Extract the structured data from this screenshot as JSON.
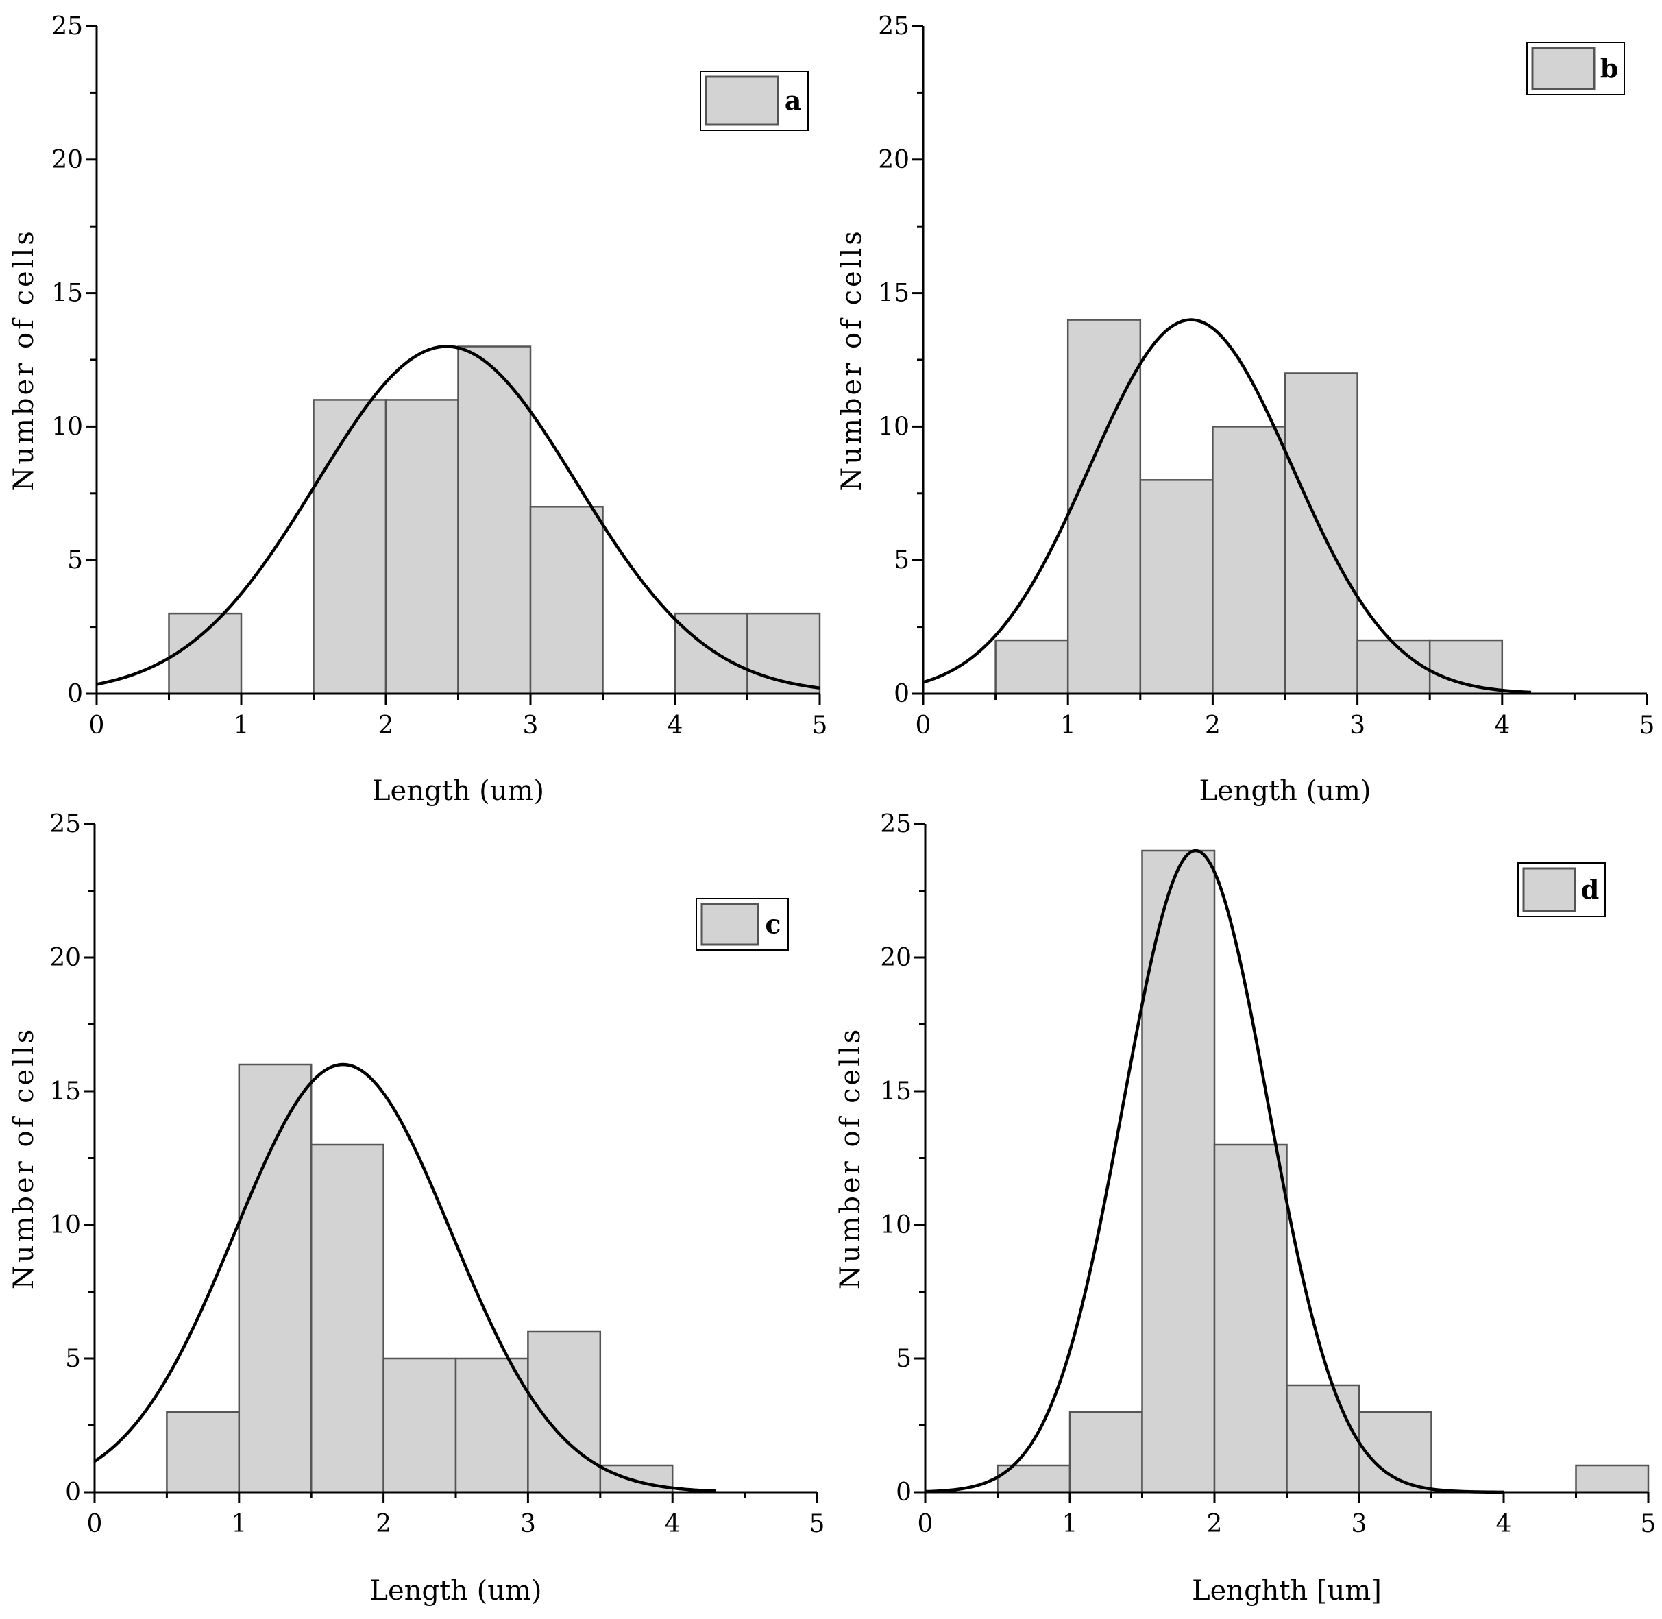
{
  "colors": {
    "bar_fill": "#d3d3d3",
    "bar_stroke": "#555555",
    "curve": "#000000",
    "axis": "#000000"
  },
  "chart_data": [
    {
      "type": "bar",
      "legend": "a",
      "legend_position": "top-right",
      "xlabel": "Length (um)",
      "ylabel": "Number of cells",
      "xlim": [
        0,
        5
      ],
      "ylim": [
        0,
        25
      ],
      "xticks": [
        "0",
        "1",
        "2",
        "3",
        "4",
        "5"
      ],
      "yticks": [
        "0",
        "5",
        "10",
        "15",
        "20",
        "25"
      ],
      "bins": [
        [
          0.5,
          1.0
        ],
        [
          1.5,
          2.0
        ],
        [
          2.0,
          2.5
        ],
        [
          2.5,
          3.0
        ],
        [
          3.0,
          3.5
        ],
        [
          4.0,
          4.5
        ],
        [
          4.5,
          5.0
        ]
      ],
      "values": [
        3,
        11,
        11,
        13,
        7,
        3,
        3
      ],
      "fit": {
        "type": "normal",
        "mean": 2.42,
        "sigma": 0.9,
        "peak": 13,
        "x_range": [
          0,
          5
        ]
      }
    },
    {
      "type": "bar",
      "legend": "b",
      "legend_position": "top-right",
      "xlabel": "Length (um)",
      "ylabel": "Number of cells",
      "xlim": [
        0,
        5
      ],
      "ylim": [
        0,
        25
      ],
      "xticks": [
        "0",
        "1",
        "2",
        "3",
        "4",
        "5"
      ],
      "yticks": [
        "0",
        "5",
        "10",
        "15",
        "20",
        "25"
      ],
      "bins": [
        [
          0.5,
          1.0
        ],
        [
          1.0,
          1.5
        ],
        [
          1.5,
          2.0
        ],
        [
          2.0,
          2.5
        ],
        [
          2.5,
          3.0
        ],
        [
          3.0,
          3.5
        ],
        [
          3.5,
          4.0
        ]
      ],
      "values": [
        2,
        14,
        8,
        10,
        12,
        2,
        2
      ],
      "fit": {
        "type": "normal",
        "mean": 1.85,
        "sigma": 0.7,
        "peak": 14,
        "x_range": [
          0,
          4.2
        ]
      }
    },
    {
      "type": "bar",
      "legend": "c",
      "legend_position": "top-right",
      "xlabel": "Length (um)",
      "ylabel": "Number of cells",
      "xlim": [
        0,
        5
      ],
      "ylim": [
        0,
        25
      ],
      "xticks": [
        "0",
        "1",
        "2",
        "3",
        "4",
        "5"
      ],
      "yticks": [
        "0",
        "5",
        "10",
        "15",
        "20",
        "25"
      ],
      "bins": [
        [
          0.5,
          1.0
        ],
        [
          1.0,
          1.5
        ],
        [
          1.5,
          2.0
        ],
        [
          2.0,
          2.5
        ],
        [
          2.5,
          3.0
        ],
        [
          3.0,
          3.5
        ],
        [
          3.5,
          4.0
        ]
      ],
      "values": [
        3,
        16,
        13,
        5,
        5,
        6,
        1
      ],
      "fit": {
        "type": "normal",
        "mean": 1.72,
        "sigma": 0.75,
        "peak": 16,
        "x_range": [
          0,
          4.3
        ]
      }
    },
    {
      "type": "bar",
      "legend": "d",
      "legend_position": "top-right",
      "xlabel": "Lenghth [um]",
      "ylabel": "Number of cells",
      "xlim": [
        0,
        5
      ],
      "ylim": [
        0,
        25
      ],
      "xticks": [
        "0",
        "1",
        "2",
        "3",
        "4",
        "5"
      ],
      "yticks": [
        "0",
        "5",
        "10",
        "15",
        "20",
        "25"
      ],
      "bins": [
        [
          0.5,
          1.0
        ],
        [
          1.0,
          1.5
        ],
        [
          1.5,
          2.0
        ],
        [
          2.0,
          2.5
        ],
        [
          2.5,
          3.0
        ],
        [
          3.0,
          3.5
        ],
        [
          4.5,
          5.0
        ]
      ],
      "values": [
        1,
        3,
        24,
        13,
        4,
        3,
        1
      ],
      "fit": {
        "type": "normal",
        "mean": 1.87,
        "sigma": 0.5,
        "peak": 24,
        "x_range": [
          0,
          4.0
        ]
      }
    }
  ]
}
